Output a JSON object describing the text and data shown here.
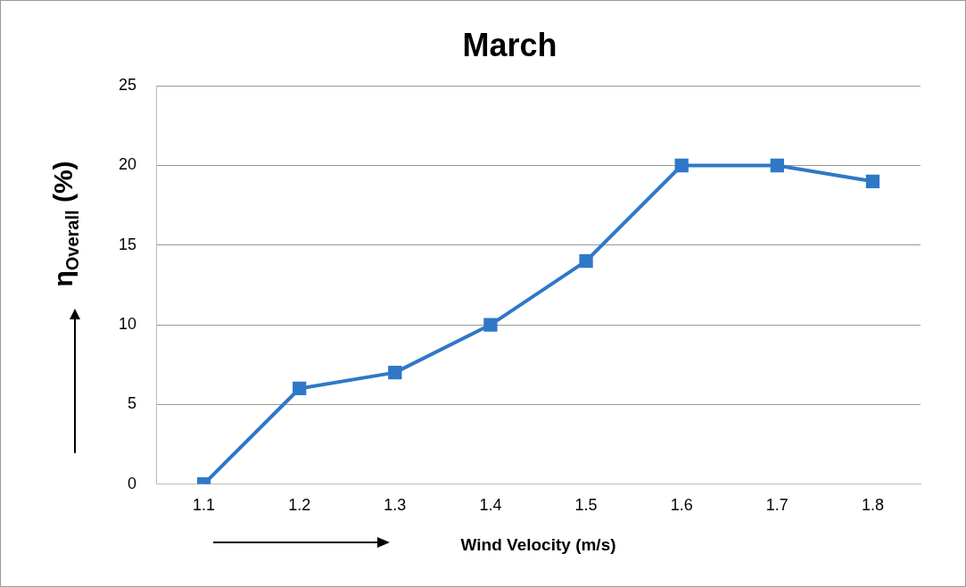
{
  "chart_data": {
    "type": "line",
    "title": "March",
    "xlabel": "Wind Velocity (m/s)",
    "ylabel": "η$_{Overall}$ (%)",
    "categories": [
      "1.1",
      "1.2",
      "1.3",
      "1.4",
      "1.5",
      "1.6",
      "1.7",
      "1.8"
    ],
    "series": [
      {
        "color": "#2f78c8",
        "values": [
          0,
          6,
          7,
          10,
          14,
          20,
          20,
          19
        ]
      }
    ],
    "ylim": [
      0,
      25
    ],
    "yticks": [
      0,
      5,
      10,
      15,
      20,
      25
    ],
    "grid": "y",
    "legend": false,
    "marker": "square",
    "line_style": "solid"
  }
}
